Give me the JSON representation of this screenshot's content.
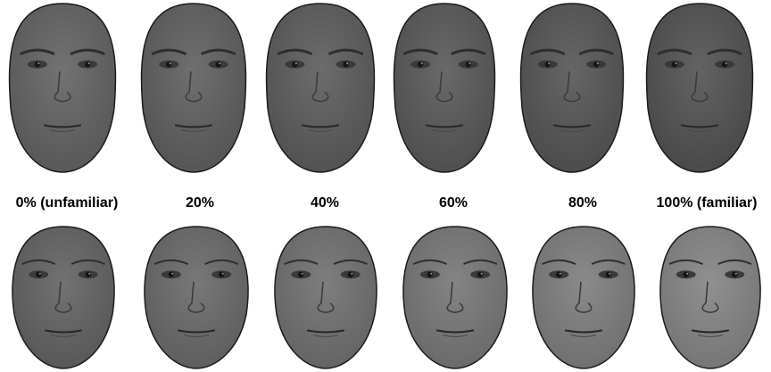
{
  "labels": {
    "l0": "0% (unfamiliar)",
    "l1": "20%",
    "l2": "40%",
    "l3": "60%",
    "l4": "80%",
    "l5": "100% (familiar)"
  },
  "colors": {
    "background": "#ffffff",
    "skin_top": "#5c5c5c",
    "skin_bottom": "#6b6b6b",
    "feature": "#2e2e2e",
    "outline": "#1c1c1c"
  },
  "icons": {
    "face": "face-morph-image"
  }
}
